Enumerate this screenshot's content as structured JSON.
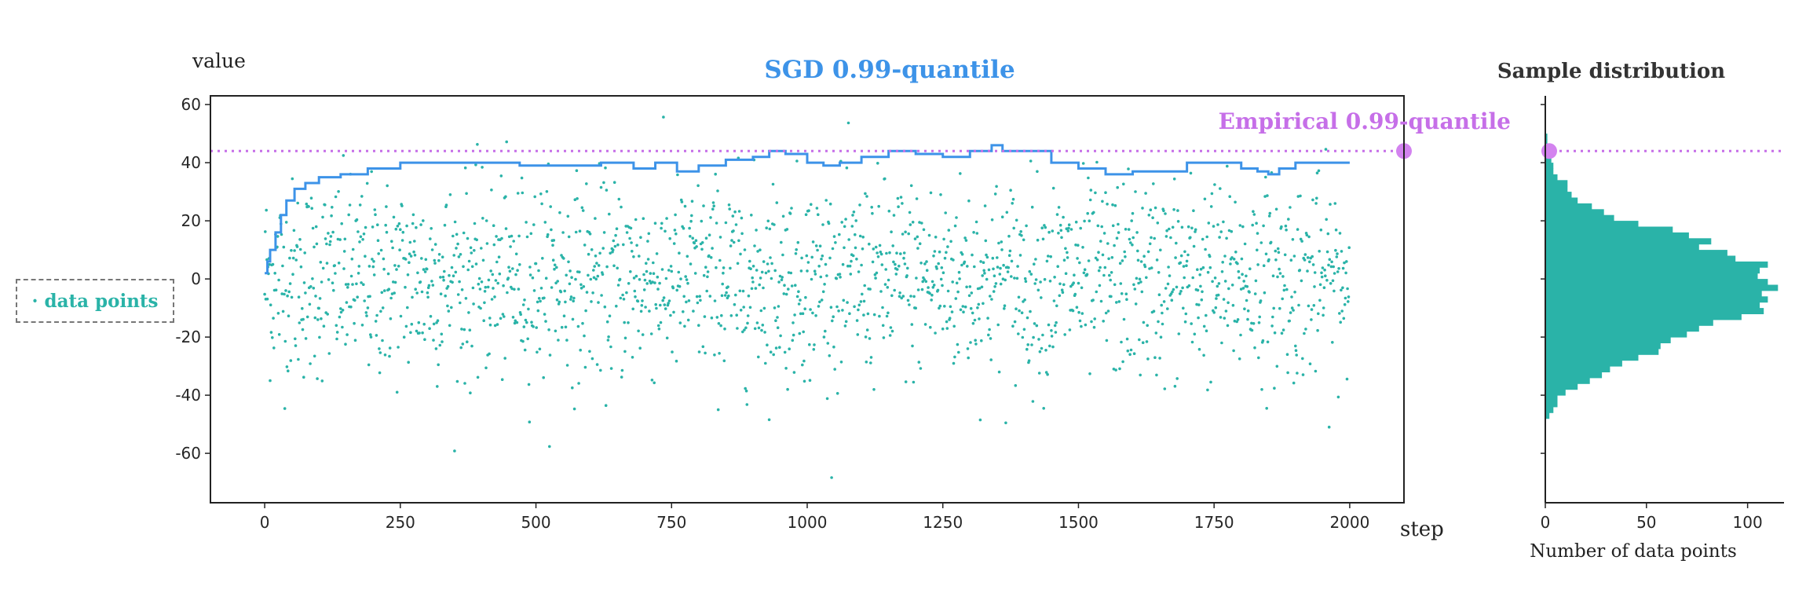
{
  "chart_data": [
    {
      "type": "line",
      "title": "SGD 0.99-quantile",
      "ylabel": "value",
      "xlabel": "step",
      "xlim": [
        -100,
        2100
      ],
      "ylim": [
        -77,
        63
      ],
      "xticks": [
        0,
        250,
        500,
        750,
        1000,
        1250,
        1500,
        1750,
        2000
      ],
      "yticks": [
        -60,
        -40,
        -20,
        0,
        20,
        40,
        60
      ],
      "grid": false,
      "legend": {
        "position": "left, outside",
        "entries": [
          "· data points"
        ]
      },
      "series": [
        {
          "name": "data points",
          "kind": "scatter",
          "color": "#2ab3a8",
          "n_points": 2000,
          "distribution_note": "approximately normal, mean 0, std ~17, step 0 to 2000"
        },
        {
          "name": "SGD 0.99-quantile",
          "kind": "step-line",
          "color": "#3d93e8",
          "x": [
            0,
            5,
            10,
            20,
            30,
            40,
            55,
            75,
            100,
            140,
            190,
            250,
            320,
            400,
            470,
            560,
            620,
            680,
            720,
            760,
            800,
            850,
            900,
            930,
            960,
            1000,
            1030,
            1060,
            1100,
            1150,
            1200,
            1250,
            1300,
            1340,
            1360,
            1400,
            1450,
            1500,
            1550,
            1600,
            1700,
            1760,
            1800,
            1830,
            1850,
            1870,
            1900,
            1950,
            2000
          ],
          "y": [
            2,
            6,
            10,
            16,
            22,
            27,
            31,
            33,
            35,
            36,
            38,
            40,
            40,
            40,
            39,
            39,
            40,
            38,
            40,
            37,
            39,
            41,
            42,
            44,
            43,
            40,
            39,
            40,
            42,
            44,
            43,
            42,
            44,
            46,
            44,
            44,
            40,
            38,
            36,
            37,
            40,
            40,
            38,
            37,
            36,
            38,
            40,
            40,
            40
          ]
        },
        {
          "name": "Empirical 0.99-quantile",
          "kind": "horizontal-line",
          "color": "#c66fe8",
          "y": 44
        }
      ],
      "annotations": [
        "Empirical 0.99-quantile"
      ]
    },
    {
      "type": "bar",
      "orientation": "horizontal",
      "title": "Sample distribution",
      "xlabel": "Number of data points",
      "xlim": [
        0,
        118
      ],
      "xticks": [
        0,
        50,
        100
      ],
      "ylim": [
        -77,
        63
      ],
      "color": "#2ab3a8",
      "bin_width": 2,
      "bins_lower": [
        -48,
        -46,
        -44,
        -42,
        -40,
        -38,
        -36,
        -34,
        -32,
        -30,
        -28,
        -26,
        -24,
        -22,
        -20,
        -18,
        -16,
        -14,
        -12,
        -10,
        -8,
        -6,
        -4,
        -2,
        0,
        2,
        4,
        6,
        8,
        10,
        12,
        14,
        16,
        18,
        20,
        22,
        24,
        26,
        28,
        30,
        32,
        34,
        36,
        38,
        40,
        42,
        44,
        46,
        48
      ],
      "counts": [
        2,
        4,
        6,
        6,
        10,
        16,
        22,
        28,
        32,
        38,
        46,
        56,
        57,
        62,
        70,
        76,
        83,
        97,
        108,
        106,
        110,
        107,
        115,
        110,
        105,
        106,
        110,
        94,
        90,
        76,
        82,
        71,
        63,
        46,
        34,
        29,
        23,
        16,
        13,
        11,
        11,
        6,
        4,
        4,
        3,
        2,
        2,
        1,
        1
      ]
    }
  ]
}
